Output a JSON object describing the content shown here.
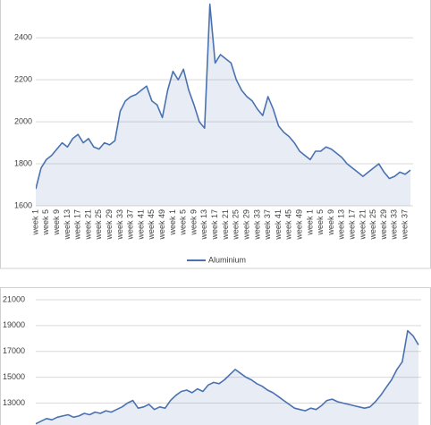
{
  "chart_data": [
    {
      "type": "area-line",
      "categories": [
        "week 1",
        null,
        "week 5",
        null,
        "week 9",
        null,
        "week 13",
        null,
        "week 17",
        null,
        "week 21",
        null,
        "week 25",
        null,
        "week 29",
        null,
        "week 33",
        null,
        "week 37",
        null,
        "week 41",
        null,
        "week 45",
        null,
        "week 49",
        null,
        "week 1",
        null,
        "week 5",
        null,
        "week 9",
        null,
        "week 13",
        null,
        "week 17",
        null,
        "week 21",
        null,
        "week 25",
        null,
        "week 29",
        null,
        "week 33",
        null,
        "week 37",
        null,
        "week 41",
        null,
        "week 45",
        null,
        "week 49",
        null,
        "week 1",
        null,
        "week 5",
        null,
        "week 9",
        null,
        "week 13",
        null,
        "week 17",
        null,
        "week 21",
        null,
        "week 25",
        null,
        "week 29",
        null,
        "week 33",
        null,
        "week 37",
        null
      ],
      "series": [
        {
          "name": "Aluminium",
          "color": "#4a72b0",
          "values": [
            1680,
            1780,
            1820,
            1840,
            1870,
            1900,
            1880,
            1920,
            1940,
            1900,
            1920,
            1880,
            1870,
            1900,
            1890,
            1910,
            2050,
            2100,
            2120,
            2130,
            2150,
            2170,
            2100,
            2080,
            2020,
            2150,
            2240,
            2200,
            2250,
            2150,
            2080,
            2000,
            1970,
            2560,
            2280,
            2320,
            2300,
            2280,
            2200,
            2150,
            2120,
            2100,
            2060,
            2030,
            2120,
            2060,
            1980,
            1950,
            1930,
            1900,
            1860,
            1840,
            1820,
            1860,
            1860,
            1880,
            1870,
            1850,
            1830,
            1800,
            1780,
            1760,
            1740,
            1760,
            1780,
            1800,
            1760,
            1730,
            1740,
            1760,
            1750,
            1770
          ]
        }
      ],
      "ylim": [
        1600,
        2580
      ],
      "yticks": [
        1600,
        1800,
        2000,
        2200,
        2400
      ],
      "grid": true,
      "legend": "bottom"
    },
    {
      "type": "area-line",
      "series": [
        {
          "color": "#4a72b0",
          "values": [
            11400,
            11600,
            11800,
            11700,
            11900,
            12000,
            12100,
            11900,
            12000,
            12200,
            12100,
            12300,
            12200,
            12400,
            12300,
            12500,
            12700,
            13000,
            13200,
            12600,
            12700,
            12900,
            12500,
            12700,
            12600,
            13200,
            13600,
            13900,
            14000,
            13800,
            14100,
            13900,
            14400,
            14600,
            14500,
            14800,
            15200,
            15600,
            15300,
            15000,
            14800,
            14500,
            14300,
            14000,
            13800,
            13500,
            13200,
            12900,
            12600,
            12500,
            12400,
            12600,
            12500,
            12800,
            13200,
            13300,
            13100,
            13000,
            12900,
            12800,
            12700,
            12600,
            12700,
            13100,
            13600,
            14200,
            14800,
            15600,
            16200,
            18600,
            18200,
            17500
          ]
        }
      ],
      "ylim": [
        11300,
        21000
      ],
      "yticks": [
        13000,
        15000,
        17000,
        19000,
        21000
      ],
      "grid": true
    }
  ]
}
